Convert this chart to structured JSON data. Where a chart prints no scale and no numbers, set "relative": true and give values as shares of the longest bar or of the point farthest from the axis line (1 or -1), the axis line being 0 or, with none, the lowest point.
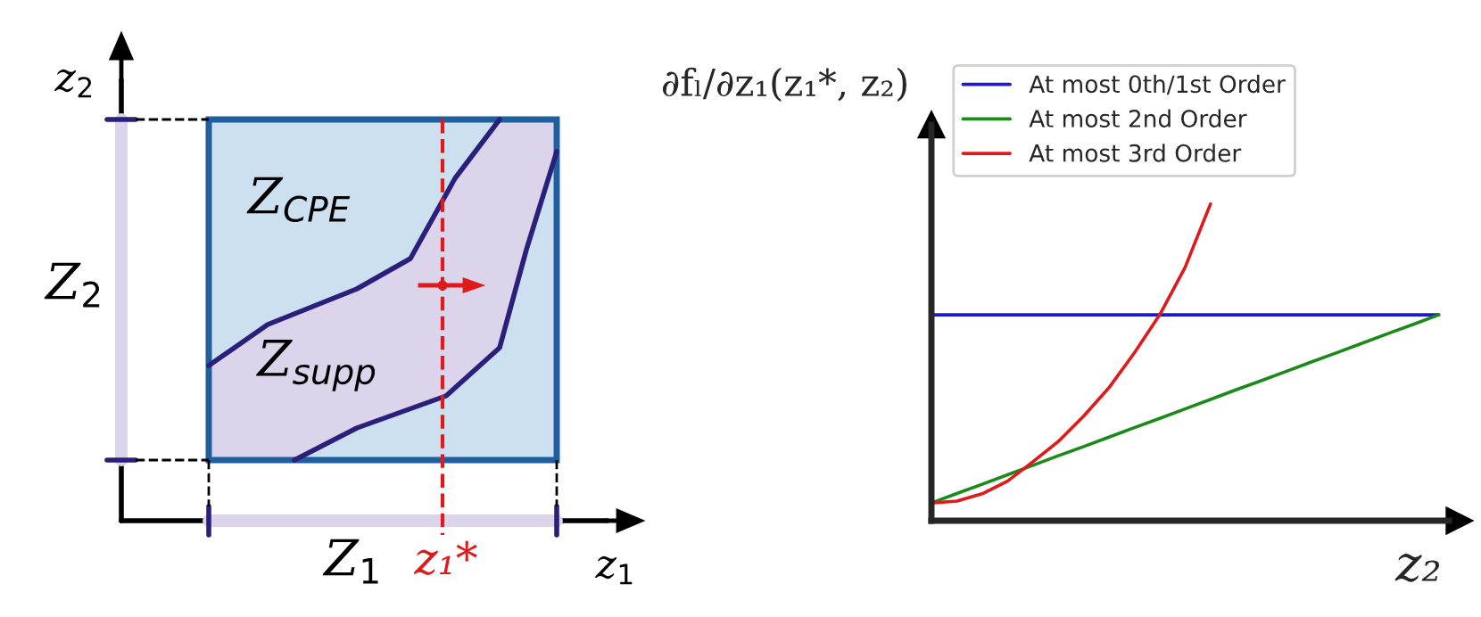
{
  "chart_data": [
    {
      "type": "other",
      "annotations": [
        "z$_{2}$",
        "Z$_{2}$",
        "Z$_{CPE}$",
        "Z$_{supp}$",
        "Z$_{1}$",
        "z₁*",
        "z$_{1}$"
      ]
    },
    {
      "type": "line",
      "relative": true,
      "xlabel": "z₂",
      "ylabel": "∂fₗ/∂z₁(z₁*, z₂)",
      "legend": "top left",
      "categories": [
        null,
        null,
        null,
        null,
        null,
        null,
        null,
        null,
        null,
        null,
        null,
        null,
        null,
        null,
        null,
        null,
        null,
        null,
        null,
        null,
        null
      ],
      "series": [
        {
          "name": "At most 0th/1st Order",
          "color": "#1a1ad0",
          "values": [
            0.65,
            0.65,
            0.65,
            0.65,
            0.65,
            0.65,
            0.65,
            0.65,
            0.65,
            0.65,
            0.65,
            0.65,
            0.65,
            0.65,
            0.65,
            0.65,
            0.65,
            0.65,
            0.65,
            0.65,
            0.65
          ]
        },
        {
          "name": "At most 2nd Order",
          "color": "#1a8a1a",
          "values": [
            0.056,
            0.086,
            0.115,
            0.145,
            0.175,
            0.205,
            0.234,
            0.264,
            0.294,
            0.323,
            0.353,
            0.383,
            0.413,
            0.442,
            0.472,
            0.502,
            0.531,
            0.561,
            0.591,
            0.62,
            0.65
          ]
        },
        {
          "name": "At most 3rd Order",
          "color": "#e01a1a",
          "values": [
            0.056,
            0.062,
            0.085,
            0.125,
            0.186,
            0.25,
            0.33,
            0.42,
            0.53,
            0.65,
            0.8,
            1.0,
            null,
            null,
            null,
            null,
            null,
            null,
            null,
            null,
            null
          ]
        }
      ]
    }
  ]
}
